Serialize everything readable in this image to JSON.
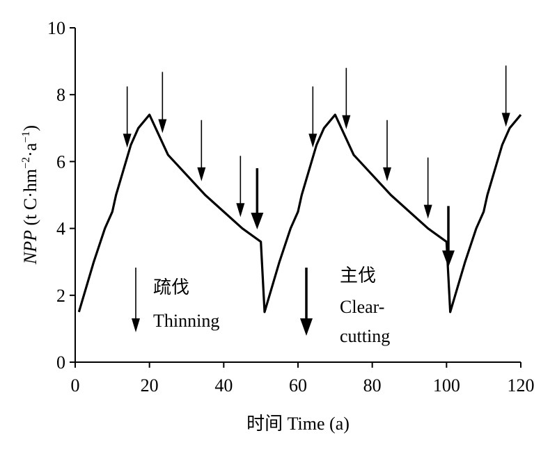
{
  "chart_data": {
    "type": "line",
    "xlabel": "时间 Time (a)",
    "ylabel_parts": [
      "NPP",
      " (t C·hm",
      "−2",
      "·a",
      "−1",
      ")"
    ],
    "x": [
      1,
      5,
      8,
      10,
      11,
      15,
      17,
      20,
      25,
      35,
      45,
      50,
      51,
      55,
      58,
      60,
      61,
      65,
      67,
      70,
      75,
      85,
      95,
      100,
      101,
      105,
      108,
      110,
      111,
      115,
      117,
      120
    ],
    "values": [
      1.5,
      3,
      4,
      4.5,
      5,
      6.5,
      7,
      7.4,
      6.2,
      5,
      4,
      3.6,
      1.5,
      3,
      4,
      4.5,
      5,
      6.5,
      7,
      7.4,
      6.2,
      5,
      4,
      3.6,
      1.5,
      3,
      4,
      4.5,
      5,
      6.5,
      7,
      7.4
    ],
    "color": "#000000",
    "thinning": [
      14,
      23.5,
      34,
      44.5,
      64,
      73,
      84,
      95,
      116
    ],
    "clearcutting": [
      49,
      100.5
    ],
    "legend": {
      "thinning": [
        "疏伐",
        "Thinning"
      ],
      "clearcutting": [
        "主伐",
        "Clear-",
        "cutting"
      ]
    },
    "xlim": [
      0,
      120
    ],
    "xticks": [
      0,
      20,
      40,
      60,
      80,
      100,
      120
    ],
    "ylim": [
      0,
      10
    ],
    "yticks": [
      0,
      2,
      4,
      6,
      8,
      10
    ]
  }
}
